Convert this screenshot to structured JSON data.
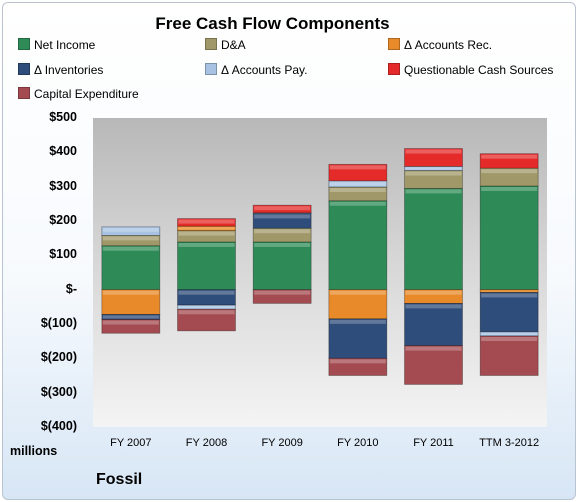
{
  "chart_data": {
    "type": "bar",
    "stacked": true,
    "title": "Free Cash Flow Components",
    "categories": [
      "FY 2007",
      "FY 2008",
      "FY 2009",
      "FY 2010",
      "FY 2011",
      "TTM 3-2012"
    ],
    "ylim": [
      -400,
      500
    ],
    "yticks": [
      {
        "value": 500,
        "label": "$500"
      },
      {
        "value": 400,
        "label": "$400"
      },
      {
        "value": 300,
        "label": "$300"
      },
      {
        "value": 200,
        "label": "$200"
      },
      {
        "value": 100,
        "label": "$100"
      },
      {
        "value": 0,
        "label": "$-"
      },
      {
        "value": -100,
        "label": "$(100)"
      },
      {
        "value": -200,
        "label": "$(200)"
      },
      {
        "value": -300,
        "label": "$(300)"
      },
      {
        "value": -400,
        "label": "$(400)"
      }
    ],
    "units_label": "millions",
    "grid": false,
    "legend_position": "top",
    "series": [
      {
        "name": "Net Income",
        "color": "#2e8b57",
        "values": [
          128,
          139,
          139,
          259,
          295,
          302
        ]
      },
      {
        "name": "D&A",
        "color": "#a09868",
        "values": [
          30,
          33,
          40,
          40,
          52,
          52
        ]
      },
      {
        "name": "Δ Accounts Rec.",
        "color": "#e98a2a",
        "values": [
          -72,
          13,
          0,
          -85,
          -40,
          -8
        ]
      },
      {
        "name": "Δ Inventories",
        "color": "#2e4d7a",
        "values": [
          -15,
          -45,
          43,
          -115,
          -123,
          -115
        ]
      },
      {
        "name": "Δ Accounts Pay.",
        "color": "#a7c2e2",
        "values": [
          25,
          -12,
          2,
          18,
          12,
          -12
        ]
      },
      {
        "name": "Questionable Cash Sources",
        "color": "#e52a2a",
        "values": [
          0,
          22,
          22,
          48,
          52,
          42
        ]
      },
      {
        "name": "Capital Expenditure",
        "color": "#a34b50",
        "values": [
          -40,
          -63,
          -40,
          -50,
          -113,
          -115
        ]
      }
    ]
  },
  "company_name": "Fossil"
}
